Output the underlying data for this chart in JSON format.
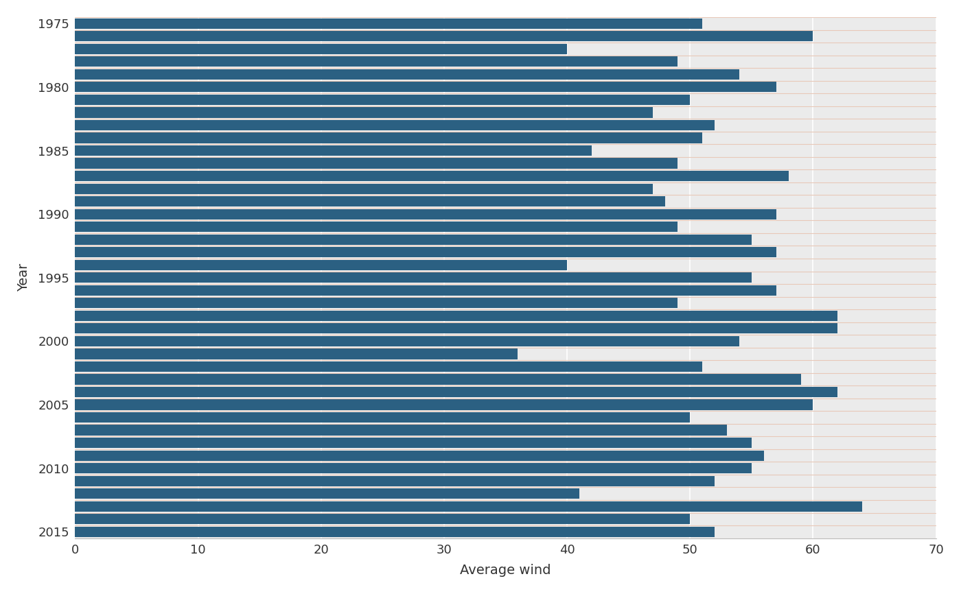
{
  "years": [
    1975,
    1976,
    1977,
    1978,
    1979,
    1980,
    1981,
    1982,
    1983,
    1984,
    1985,
    1986,
    1987,
    1988,
    1989,
    1990,
    1991,
    1992,
    1993,
    1994,
    1995,
    1996,
    1997,
    1998,
    1999,
    2000,
    2001,
    2002,
    2003,
    2004,
    2005,
    2006,
    2007,
    2008,
    2009,
    2010,
    2011,
    2012,
    2013,
    2014,
    2015
  ],
  "values": [
    51,
    60,
    40,
    49,
    54,
    57,
    50,
    47,
    52,
    51,
    42,
    49,
    58,
    47,
    48,
    57,
    49,
    55,
    57,
    40,
    55,
    57,
    49,
    62,
    62,
    54,
    36,
    51,
    59,
    62,
    60,
    50,
    53,
    55,
    56,
    55,
    52,
    41,
    64,
    50,
    52
  ],
  "bar_color": "#2b6082",
  "bg_color": "#ffffff",
  "plot_bg_color": "#ebebeb",
  "grid_color": "#ffffff",
  "sep_color": "#e8c8b8",
  "xlabel": "Average wind",
  "ylabel": "Year",
  "xlim": [
    0,
    70
  ],
  "xticks": [
    0,
    10,
    20,
    30,
    40,
    50,
    60,
    70
  ],
  "label_years": [
    1975,
    1980,
    1985,
    1990,
    1995,
    2000,
    2005,
    2010,
    2015
  ],
  "figsize": [
    14.0,
    8.66
  ],
  "dpi": 100
}
